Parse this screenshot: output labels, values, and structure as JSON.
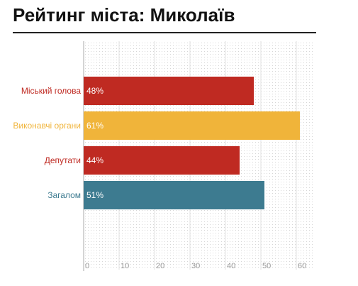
{
  "chart_data": {
    "type": "bar",
    "orientation": "horizontal",
    "title": "Рейтинг міста: Миколаїв",
    "categories": [
      "Міський голова",
      "Виконавчі органи",
      "Депутати",
      "Загалом"
    ],
    "values": [
      48,
      61,
      44,
      51
    ],
    "value_labels": [
      "48%",
      "61%",
      "44%",
      "51%"
    ],
    "colors": [
      "#bf2a22",
      "#f0b43a",
      "#bf2a22",
      "#3d7b90"
    ],
    "xlim": [
      0,
      65
    ],
    "xticks": [
      0,
      10,
      20,
      30,
      40,
      50,
      60
    ],
    "grid": true
  }
}
